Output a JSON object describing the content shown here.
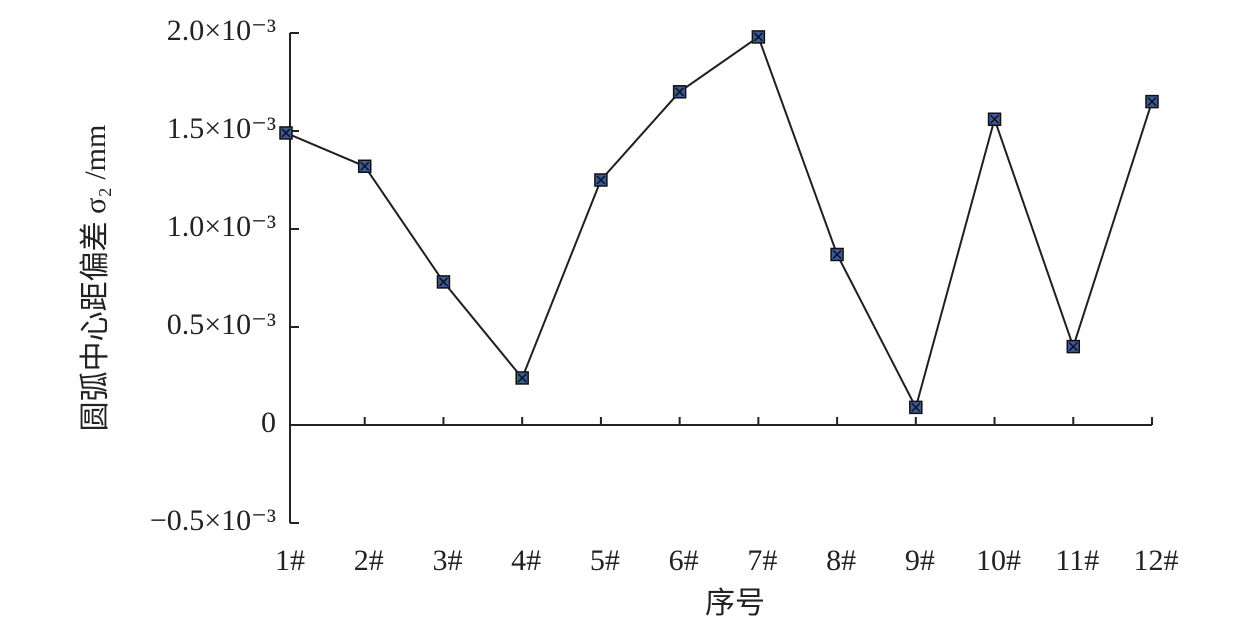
{
  "chart_data": {
    "type": "line",
    "x_label": "序号",
    "y_label": "圆弧中心距偏差 σ₂ /mm",
    "categories": [
      "1#",
      "2#",
      "3#",
      "4#",
      "5#",
      "6#",
      "7#",
      "8#",
      "9#",
      "10#",
      "11#",
      "12#"
    ],
    "series": [
      {
        "color": "#1f1f1f",
        "marker_color": "#3b5a9a",
        "values": [
          0.00149,
          0.00132,
          0.00073,
          0.00024,
          0.00125,
          0.0017,
          0.00198,
          0.00087,
          9e-05,
          0.00156,
          0.0004,
          0.00165
        ]
      }
    ],
    "ylim": [
      -0.0005,
      0.002
    ],
    "yticks": [
      {
        "value": -0.0005,
        "label": "−0.5×10⁻³"
      },
      0,
      {
        "value": 0.0005,
        "label": "0.5×10⁻³"
      },
      {
        "value": 0.001,
        "label": "1.0×10⁻³"
      },
      {
        "value": 0.0015,
        "label": "1.5×10⁻³"
      },
      {
        "value": 0.002,
        "label": "2.0×10⁻³"
      }
    ],
    "grid": false
  }
}
